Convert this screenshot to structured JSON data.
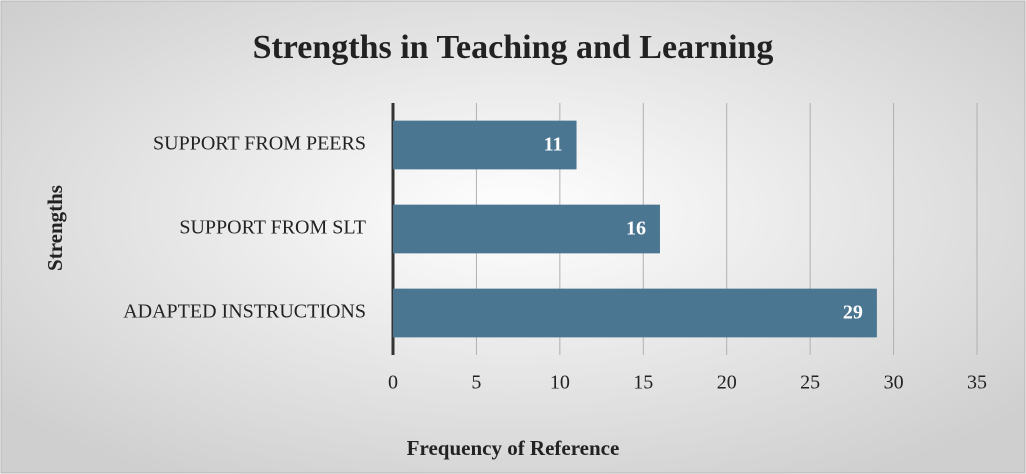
{
  "chart_data": {
    "type": "barh",
    "title": "Strengths in Teaching and Learning",
    "x_label": "Frequency of Reference",
    "y_label": "Strengths",
    "categories": [
      "SUPPORT FROM PEERS",
      "SUPPORT FROM SLT",
      "ADAPTED INSTRUCTIONS"
    ],
    "values": [
      11,
      16,
      29
    ],
    "color": "#4a7691",
    "xlim": [
      0,
      35
    ],
    "xticks": [
      0,
      5,
      10,
      15,
      20,
      25,
      30,
      35
    ],
    "grid": true
  }
}
